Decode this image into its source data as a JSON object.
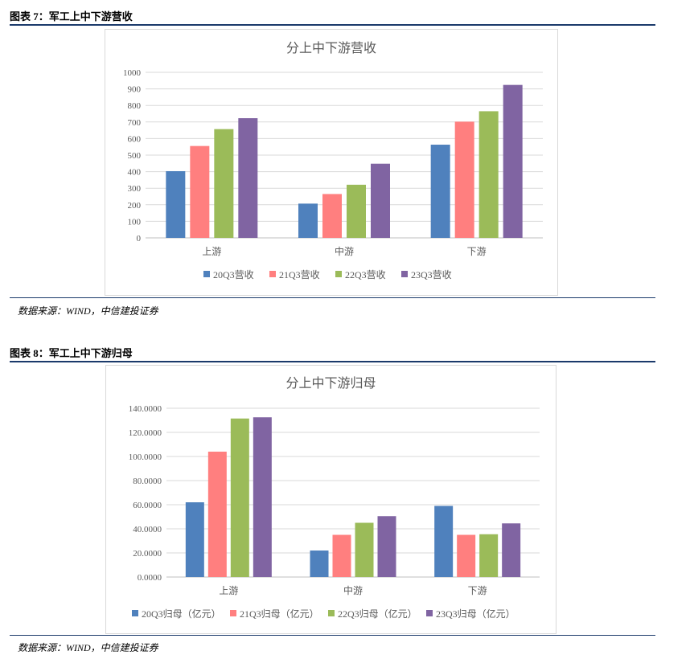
{
  "figures": [
    {
      "caption": "图表 7：军工上中下游营收",
      "source": "数据来源：WIND，中信建投证券",
      "chart_data": {
        "type": "bar",
        "title": "分上中下游营收",
        "categories": [
          "上游",
          "中游",
          "下游"
        ],
        "series": [
          {
            "name": "20Q3营收",
            "color": "#4f81bd",
            "values": [
              403,
              207,
              563
            ]
          },
          {
            "name": "21Q3营收",
            "color": "#ff7f7f",
            "values": [
              555,
              265,
              702
            ]
          },
          {
            "name": "22Q3营收",
            "color": "#9bbb59",
            "values": [
              657,
              321,
              765
            ]
          },
          {
            "name": "23Q3营收",
            "color": "#8064a2",
            "values": [
              723,
              448,
              924
            ]
          }
        ],
        "ylim": [
          0,
          1000
        ],
        "yticks": [
          "0",
          "100",
          "200",
          "300",
          "400",
          "500",
          "600",
          "700",
          "800",
          "900",
          "1000"
        ],
        "grid": true,
        "legend": "bottom"
      }
    },
    {
      "caption": "图表 8：军工上中下游归母",
      "source": "数据来源：WIND，中信建投证券",
      "chart_data": {
        "type": "bar",
        "title": "分上中下游归母",
        "categories": [
          "上游",
          "中游",
          "下游"
        ],
        "series": [
          {
            "name": "20Q3归母（亿元）",
            "color": "#4f81bd",
            "values": [
              62,
              22,
              59
            ]
          },
          {
            "name": "21Q3归母（亿元）",
            "color": "#ff7f7f",
            "values": [
              104,
              35,
              35
            ]
          },
          {
            "name": "22Q3归母（亿元）",
            "color": "#9bbb59",
            "values": [
              131.5,
              45,
              35.5
            ]
          },
          {
            "name": "23Q3归母（亿元）",
            "color": "#8064a2",
            "values": [
              132.5,
              50.5,
              44.5
            ]
          }
        ],
        "ylim": [
          0,
          140
        ],
        "yticks": [
          "0.0000",
          "20.0000",
          "40.0000",
          "60.0000",
          "80.0000",
          "100.0000",
          "120.0000",
          "140.0000"
        ],
        "grid": true,
        "legend": "bottom"
      }
    }
  ]
}
